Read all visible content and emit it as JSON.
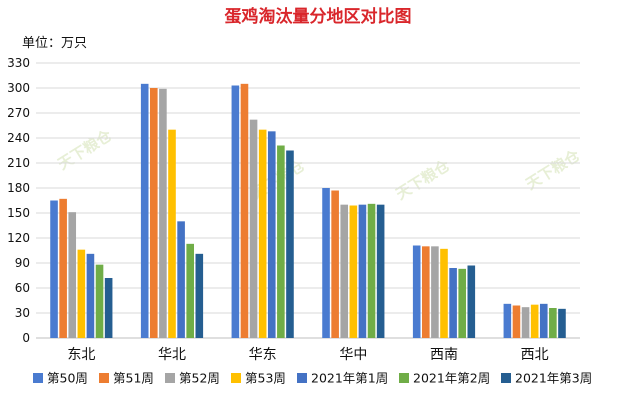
{
  "chart_data": {
    "type": "bar",
    "title": "蛋鸡淘汰量分地区对比图",
    "unit_label": "单位：万只",
    "watermark": "天下粮仓",
    "ylim": [
      0,
      330
    ],
    "yticks": [
      0,
      30,
      60,
      90,
      120,
      150,
      180,
      210,
      240,
      270,
      300,
      330
    ],
    "grid": true,
    "legend_position": "bottom",
    "categories": [
      "东北",
      "华北",
      "华东",
      "华中",
      "西南",
      "西北"
    ],
    "series": [
      {
        "name": "第50周",
        "color": "#4a7bd0",
        "values": [
          165,
          305,
          303,
          180,
          111,
          41
        ]
      },
      {
        "name": "第51周",
        "color": "#ed7d31",
        "values": [
          167,
          300,
          305,
          177,
          110,
          39
        ]
      },
      {
        "name": "第52周",
        "color": "#a5a5a5",
        "values": [
          151,
          299,
          262,
          160,
          110,
          37
        ]
      },
      {
        "name": "第53周",
        "color": "#ffc000",
        "values": [
          106,
          250,
          250,
          159,
          107,
          40
        ]
      },
      {
        "name": "2021年第1周",
        "color": "#4472c4",
        "values": [
          101,
          140,
          248,
          160,
          84,
          41
        ]
      },
      {
        "name": "2021年第2周",
        "color": "#70ad47",
        "values": [
          88,
          113,
          231,
          161,
          83,
          36
        ]
      },
      {
        "name": "2021年第3周",
        "color": "#255e91",
        "values": [
          72,
          101,
          225,
          160,
          87,
          35
        ]
      }
    ]
  }
}
